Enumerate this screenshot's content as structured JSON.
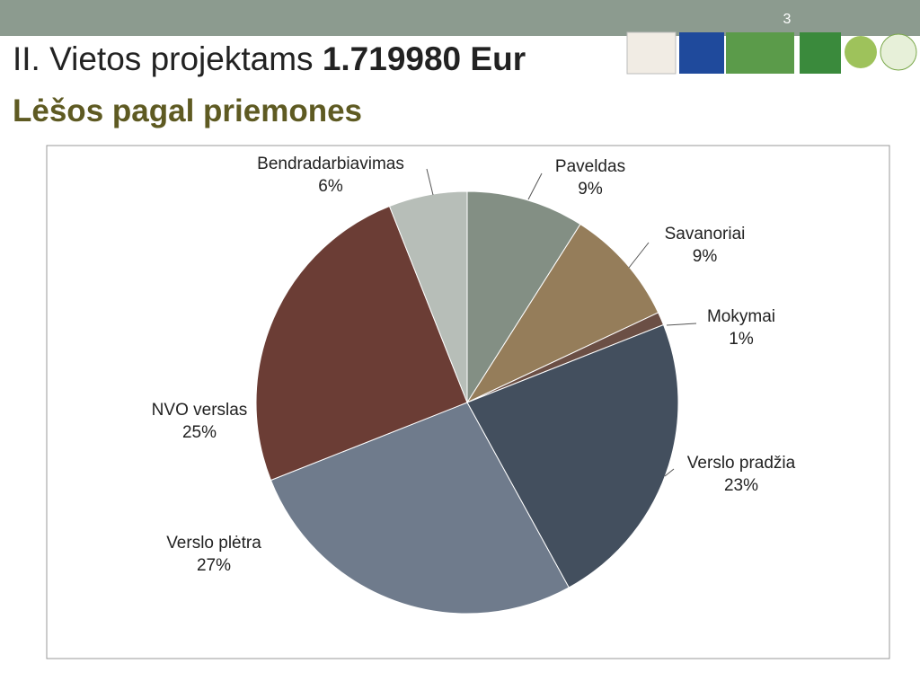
{
  "page_number": "3",
  "chart_data": {
    "type": "pie",
    "title": "II. Vietos projektams",
    "title_amount": "1.719980 Eur",
    "subtitle": "Lėšos pagal priemones",
    "categories": [
      "Paveldas",
      "Savanoriai",
      "Mokymai",
      "Verslo pradžia",
      "Verslo plėtra",
      "NVO verslas",
      "Bendradarbiavimas"
    ],
    "values": [
      9,
      9,
      1,
      23,
      27,
      25,
      6
    ],
    "value_labels": [
      "9%",
      "9%",
      "1%",
      "23%",
      "27%",
      "25%",
      "6%"
    ],
    "colors": [
      "#838f84",
      "#957d5a",
      "#6b4f45",
      "#434f5e",
      "#6f7b8c",
      "#6b3d35",
      "#b7beb8"
    ]
  }
}
